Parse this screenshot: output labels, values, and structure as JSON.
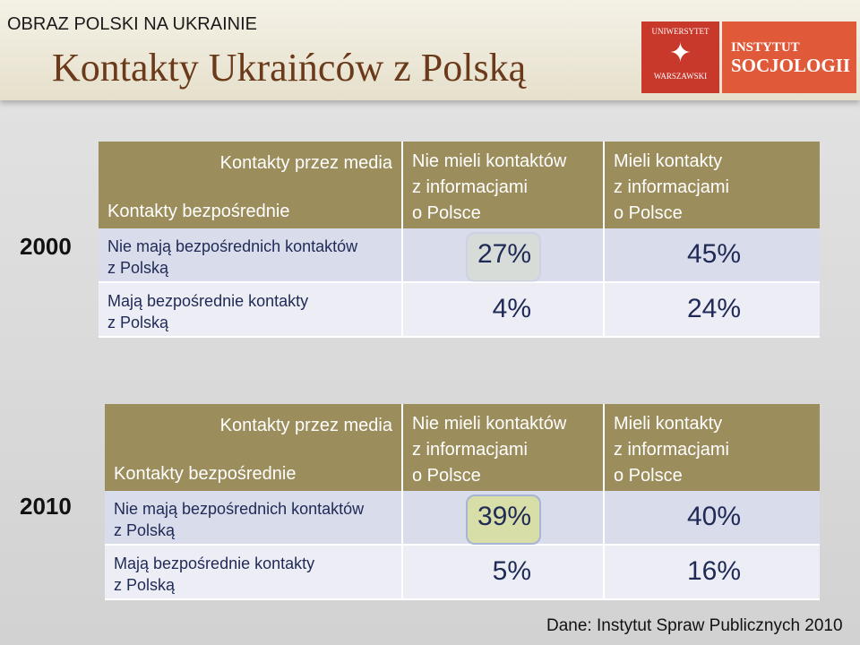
{
  "header": {
    "subtitle": "OBRAZ POLSKI NA UKRAINIE",
    "title": "Kontakty Ukraińców z Polską",
    "logo_left": [
      "UNIWERSYTET",
      "WARSZAWSKI"
    ],
    "logo_right": [
      "INSTYTUT",
      "SOCJOLOGII"
    ]
  },
  "tables": [
    {
      "year": "2000",
      "corner_top": "Kontakty przez media",
      "corner_bottom": "Kontakty bezpośrednie",
      "columns": [
        "Nie mieli kontaktów\nz informacjami\no Polsce",
        "Mieli kontakty\nz informacjami\no Polsce"
      ],
      "rows": [
        {
          "label": "Nie mają bezpośrednich kontaktów\nz Polską",
          "cells": [
            "27%",
            "45%"
          ]
        },
        {
          "label": "Mają bezpośrednie kontakty\nz Polską",
          "cells": [
            "4%",
            "24%"
          ]
        }
      ]
    },
    {
      "year": "2010",
      "corner_top": "Kontakty przez media",
      "corner_bottom": "Kontakty bezpośrednie",
      "columns": [
        "Nie mieli kontaktów\nz informacjami\no Polsce",
        "Mieli kontakty\nz informacjami\no Polsce"
      ],
      "rows": [
        {
          "label": "Nie mają bezpośrednich kontaktów\nz Polską",
          "cells": [
            "39%",
            "40%"
          ]
        },
        {
          "label": "Mają bezpośrednie kontakty\nz Polską",
          "cells": [
            "5%",
            "16%"
          ]
        }
      ]
    }
  ],
  "source": "Dane: Instytut Spraw Publicznych 2010"
}
